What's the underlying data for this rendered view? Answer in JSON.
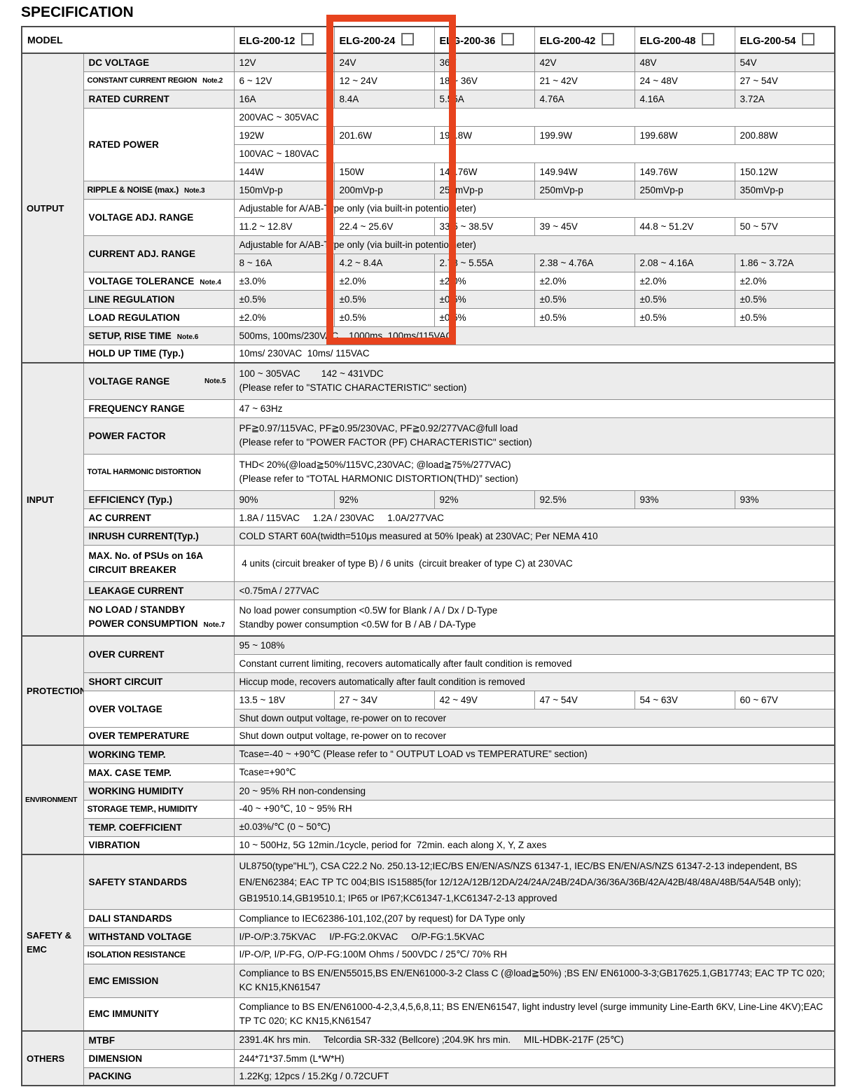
{
  "title": "SPECIFICATION",
  "colors": {
    "highlight": "#e7431e",
    "row_shade": "#ececec",
    "grid_line": "#8e8e8e",
    "section_line": "#4a4a4a"
  },
  "highlight": {
    "target_model": "ELG-200-24"
  },
  "model_row": {
    "label": "MODEL",
    "models": [
      "ELG-200-12",
      "ELG-200-24",
      "ELG-200-36",
      "ELG-200-42",
      "ELG-200-48",
      "ELG-200-54"
    ]
  },
  "sections": {
    "output": {
      "label": "OUTPUT",
      "rows": {
        "dc_voltage": {
          "label": "DC VOLTAGE",
          "values": [
            "12V",
            "24V",
            "36V",
            "42V",
            "48V",
            "54V"
          ]
        },
        "ccr": {
          "label": "CONSTANT CURRENT REGION",
          "note": "Note.2",
          "values": [
            "6 ~ 12V",
            "12 ~ 24V",
            "18 ~ 36V",
            "21 ~ 42V",
            "24 ~ 48V",
            "27 ~ 54V"
          ]
        },
        "rated_current": {
          "label": "RATED CURRENT",
          "values": [
            "16A",
            "8.4A",
            "5.55A",
            "4.76A",
            "4.16A",
            "3.72A"
          ]
        },
        "rated_power": {
          "label": "RATED POWER",
          "range_high": "200VAC ~ 305VAC",
          "high_values": [
            "192W",
            "201.6W",
            "199.8W",
            "199.9W",
            "199.68W",
            "200.88W"
          ],
          "range_low": "100VAC ~ 180VAC",
          "low_values": [
            "144W",
            "150W",
            "149.76W",
            "149.94W",
            "149.76W",
            "150.12W"
          ]
        },
        "ripple": {
          "label": "RIPPLE & NOISE (max.)",
          "note": "Note.3",
          "values": [
            "150mVp-p",
            "200mVp-p",
            "250mVp-p",
            "250mVp-p",
            "250mVp-p",
            "350mVp-p"
          ]
        },
        "voltage_adj": {
          "label": "VOLTAGE ADJ. RANGE",
          "span_text": "Adjustable for A/AB-Type only (via built-in potentiometer)",
          "values": [
            "11.2 ~ 12.8V",
            "22.4 ~ 25.6V",
            "33.5 ~ 38.5V",
            "39 ~ 45V",
            "44.8 ~ 51.2V",
            "50 ~ 57V"
          ]
        },
        "current_adj": {
          "label": "CURRENT ADJ. RANGE",
          "span_text": "Adjustable for A/AB-Type only (via built-in potentiometer)",
          "values": [
            "8 ~ 16A",
            "4.2 ~ 8.4A",
            "2.78 ~ 5.55A",
            "2.38 ~ 4.76A",
            "2.08 ~ 4.16A",
            "1.86 ~ 3.72A"
          ]
        },
        "voltage_tolerance": {
          "label": "VOLTAGE TOLERANCE",
          "note": "Note.4",
          "values": [
            "±3.0%",
            "±2.0%",
            "±2.0%",
            "±2.0%",
            "±2.0%",
            "±2.0%"
          ]
        },
        "line_regulation": {
          "label": "LINE REGULATION",
          "values": [
            "±0.5%",
            "±0.5%",
            "±0.5%",
            "±0.5%",
            "±0.5%",
            "±0.5%"
          ]
        },
        "load_regulation": {
          "label": "LOAD REGULATION",
          "values": [
            "±2.0%",
            "±0.5%",
            "±0.5%",
            "±0.5%",
            "±0.5%",
            "±0.5%"
          ]
        },
        "setup_rise": {
          "label": "SETUP, RISE TIME",
          "note": "Note.6",
          "span_text": "500ms, 100ms/230VAC,   1000ms, 100ms/115VAC"
        },
        "hold_up": {
          "label": "HOLD UP TIME (Typ.)",
          "span_text": "10ms/ 230VAC  10ms/ 115VAC"
        }
      }
    },
    "input": {
      "label": "INPUT",
      "rows": {
        "voltage_range": {
          "label": "VOLTAGE RANGE",
          "note": "Note.5",
          "line1": "100 ~ 305VAC        142 ~ 431VDC",
          "line2": "(Please refer to \"STATIC CHARACTERISTIC\" section)"
        },
        "frequency": {
          "label": "FREQUENCY RANGE",
          "span_text": "47 ~ 63Hz"
        },
        "power_factor": {
          "label": "POWER FACTOR",
          "line1": "PF≧0.97/115VAC, PF≧0.95/230VAC, PF≧0.92/277VAC@full load",
          "line2": "(Please refer to \"POWER FACTOR (PF) CHARACTERISTIC\" section)"
        },
        "thd": {
          "label": "TOTAL HARMONIC DISTORTION",
          "line1": "THD< 20%(@load≧50%/115VC,230VAC; @load≧75%/277VAC)",
          "line2": "(Please refer to “TOTAL HARMONIC DISTORTION(THD)” section)"
        },
        "efficiency": {
          "label": "EFFICIENCY (Typ.)",
          "values": [
            "90%",
            "92%",
            "92%",
            "92.5%",
            "93%",
            "93%"
          ]
        },
        "ac_current": {
          "label": "AC CURRENT",
          "span_text": "1.8A / 115VAC     1.2A / 230VAC     1.0A/277VAC"
        },
        "inrush": {
          "label": "INRUSH CURRENT(Typ.)",
          "span_text": "COLD START 60A(twidth=510μs measured at 50% Ipeak) at 230VAC; Per NEMA 410"
        },
        "max_psu": {
          "label_line1": "MAX. No. of PSUs on 16A",
          "label_line2": "CIRCUIT BREAKER",
          "span_text": " 4 units (circuit breaker of type B) / 6 units  (circuit breaker of type C) at 230VAC"
        },
        "leakage": {
          "label": "LEAKAGE CURRENT",
          "span_text": "<0.75mA / 277VAC"
        },
        "no_load": {
          "label_line1": "NO LOAD / STANDBY",
          "label_line2": "POWER CONSUMPTION",
          "note": "Note.7",
          "line1": "No load power consumption <0.5W for Blank / A / Dx / D-Type",
          "line2": "Standby power consumption <0.5W for B / AB / DA-Type"
        }
      }
    },
    "protection": {
      "label": "PROTECTION",
      "rows": {
        "over_current": {
          "label": "OVER CURRENT",
          "line1": "95 ~ 108%",
          "line2": "Constant current limiting, recovers automatically after fault condition is removed"
        },
        "short_circuit": {
          "label": "SHORT CIRCUIT",
          "span_text": "Hiccup mode, recovers automatically after fault condition is removed"
        },
        "over_voltage": {
          "label": "OVER VOLTAGE",
          "values": [
            "13.5 ~ 18V",
            "27 ~ 34V",
            "42 ~ 49V",
            "47 ~ 54V",
            "54 ~ 63V",
            "60 ~ 67V"
          ],
          "span_text": "Shut down output voltage, re-power on to recover"
        },
        "over_temperature": {
          "label": "OVER TEMPERATURE",
          "span_text": "Shut down output voltage, re-power on to recover"
        }
      }
    },
    "environment": {
      "label": "ENVIRONMENT",
      "rows": {
        "working_temp": {
          "label": "WORKING TEMP.",
          "span_text": "Tcase=-40 ~ +90℃ (Please refer to “ OUTPUT LOAD vs TEMPERATURE” section)"
        },
        "max_case_temp": {
          "label": "MAX. CASE TEMP.",
          "span_text": "Tcase=+90℃"
        },
        "working_humidity": {
          "label": "WORKING HUMIDITY",
          "span_text": "20 ~ 95% RH non-condensing"
        },
        "storage": {
          "label": "STORAGE TEMP., HUMIDITY",
          "span_text": "-40 ~ +90℃, 10 ~ 95% RH"
        },
        "temp_coefficient": {
          "label": "TEMP. COEFFICIENT",
          "span_text": "±0.03%/℃ (0 ~ 50℃)"
        },
        "vibration": {
          "label": "VIBRATION",
          "span_text": "10 ~ 500Hz, 5G 12min./1cycle, period for  72min. each along X, Y, Z axes"
        }
      }
    },
    "safety": {
      "label_line1": "SAFETY &",
      "label_line2": "EMC",
      "rows": {
        "safety_standards": {
          "label": "SAFETY STANDARDS",
          "span_text": "UL8750(type\"HL\"), CSA C22.2 No. 250.13-12;IEC/BS EN/EN/AS/NZS 61347-1, IEC/BS EN/EN/AS/NZS 61347-2-13 independent, BS EN/EN62384; EAC TP TC 004;BIS IS15885(for 12/12A/12B/12DA/24/24A/24B/24DA/36/36A/36B/42A/42B/48/48A/48B/54A/54B only); GB19510.14,GB19510.1; IP65 or IP67;KC61347-1,KC61347-2-13 approved"
        },
        "dali": {
          "label": "DALI STANDARDS",
          "span_text": "Compliance to IEC62386-101,102,(207 by request) for DA Type only"
        },
        "withstand": {
          "label": "WITHSTAND VOLTAGE",
          "span_text": "I/P-O/P:3.75KVAC     I/P-FG:2.0KVAC     O/P-FG:1.5KVAC"
        },
        "isolation": {
          "label": "ISOLATION RESISTANCE",
          "span_text": "I/P-O/P, I/P-FG, O/P-FG:100M Ohms / 500VDC / 25℃/ 70% RH"
        },
        "emc_emission": {
          "label": "EMC EMISSION",
          "span_text": "Compliance to BS EN/EN55015,BS EN/EN61000-3-2  Class C (@load≧50%) ;BS EN/ EN61000-3-3;GB17625.1,GB17743; EAC TP TC 020; KC KN15,KN61547"
        },
        "emc_immunity": {
          "label": "EMC IMMUNITY",
          "span_text": "Compliance to BS EN/EN61000-4-2,3,4,5,6,8,11; BS EN/EN61547, light industry level (surge immunity Line-Earth 6KV, Line-Line 4KV);EAC TP TC 020; KC KN15,KN61547"
        }
      }
    },
    "others": {
      "label": "OTHERS",
      "rows": {
        "mtbf": {
          "label": "MTBF",
          "span_text": "2391.4K hrs min.     Telcordia SR-332 (Bellcore) ;204.9K hrs min.     MIL-HDBK-217F (25℃)"
        },
        "dimension": {
          "label": "DIMENSION",
          "span_text": "244*71*37.5mm (L*W*H)"
        },
        "packing": {
          "label": "PACKING",
          "span_text": "1.22Kg; 12pcs / 15.2Kg / 0.72CUFT"
        }
      }
    }
  }
}
